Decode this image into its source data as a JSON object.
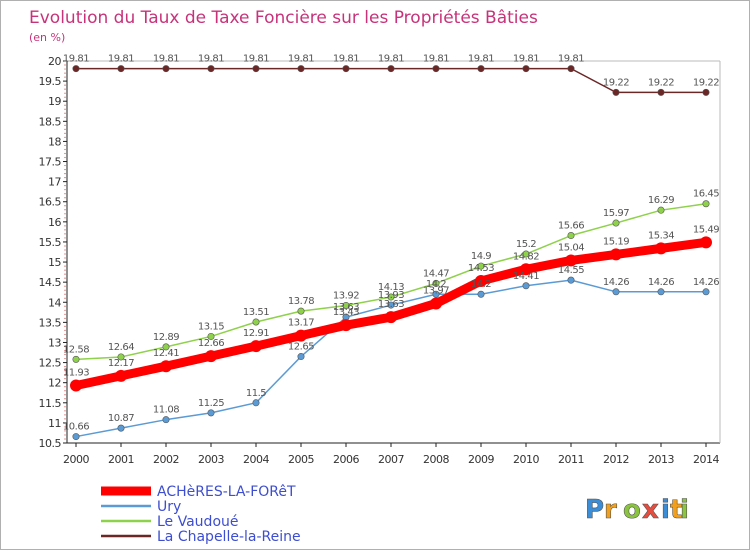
{
  "chart_data": {
    "type": "line",
    "title": "Evolution du Taux de Taxe Foncière sur les Propriétés Bâties",
    "ylabel": "(en %)",
    "xlabel": "",
    "categories": [
      "2000",
      "2001",
      "2002",
      "2003",
      "2004",
      "2005",
      "2006",
      "2007",
      "2008",
      "2009",
      "2010",
      "2011",
      "2012",
      "2013",
      "2014"
    ],
    "yticks": [
      "10.5",
      "11",
      "11.5",
      "12",
      "12.5",
      "13",
      "13.5",
      "14",
      "14.5",
      "15",
      "15.5",
      "16",
      "16.5",
      "17",
      "17.5",
      "18",
      "18.5",
      "19",
      "19.5",
      "20"
    ],
    "ylim": [
      10.5,
      20
    ],
    "grid": false,
    "legend_position": "bottom-left",
    "series": [
      {
        "name": "ACHèRES-LA-FORêT",
        "color": "#ff0000",
        "values": [
          11.93,
          12.17,
          12.41,
          12.66,
          12.91,
          13.17,
          13.43,
          13.63,
          13.97,
          14.53,
          14.82,
          15.04,
          15.19,
          15.34,
          15.49
        ],
        "labels": [
          "11.93",
          "12.17",
          "12.41",
          "12.66",
          "12.91",
          "13.17",
          "13.43",
          "13.63",
          "13.97",
          "14.53",
          "14.82",
          "15.04",
          "15.19",
          "15.34",
          "15.49"
        ]
      },
      {
        "name": "Ury",
        "color": "#5b9bd5",
        "values": [
          10.66,
          10.87,
          11.08,
          11.25,
          11.5,
          12.65,
          13.63,
          13.93,
          14.2,
          14.2,
          14.41,
          14.55,
          14.26,
          14.26,
          14.26
        ],
        "labels": [
          "10.66",
          "10.87",
          "11.08",
          "11.25",
          "11.5",
          "12.65",
          "13.63",
          "13.93",
          "14.2",
          "14.2",
          "14.41",
          "14.55",
          "14.26",
          "14.26",
          "14.26"
        ]
      },
      {
        "name": "Le Vaudoué",
        "color": "#8ed14a",
        "values": [
          12.58,
          12.64,
          12.89,
          13.15,
          13.51,
          13.78,
          13.92,
          14.13,
          14.47,
          14.9,
          15.2,
          15.66,
          15.97,
          16.29,
          16.45
        ],
        "labels": [
          "12.58",
          "12.64",
          "12.89",
          "13.15",
          "13.51",
          "13.78",
          "13.92",
          "14.13",
          "14.47",
          "14.9",
          "15.2",
          "15.66",
          "15.97",
          "16.29",
          "16.45"
        ]
      },
      {
        "name": "La Chapelle-la-Reine",
        "color": "#6b2626",
        "values": [
          19.81,
          19.81,
          19.81,
          19.81,
          19.81,
          19.81,
          19.81,
          19.81,
          19.81,
          19.81,
          19.81,
          19.81,
          19.22,
          19.22,
          19.22
        ],
        "labels": [
          "19.81",
          "19.81",
          "19.81",
          "19.81",
          "19.81",
          "19.81",
          "19.81",
          "19.81",
          "19.81",
          "19.81",
          "19.81",
          "19.81",
          "19.22",
          "19.22",
          "19.22"
        ]
      }
    ]
  },
  "logo": {
    "letters": [
      "P",
      "r",
      "o",
      "x",
      "i",
      "t",
      "i"
    ],
    "colors": [
      "#3c8dd8",
      "#f2a01c",
      "#8bc53f",
      "#e84c3d",
      "#3c8dd8",
      "#f2a01c",
      "#8bc53f"
    ]
  }
}
